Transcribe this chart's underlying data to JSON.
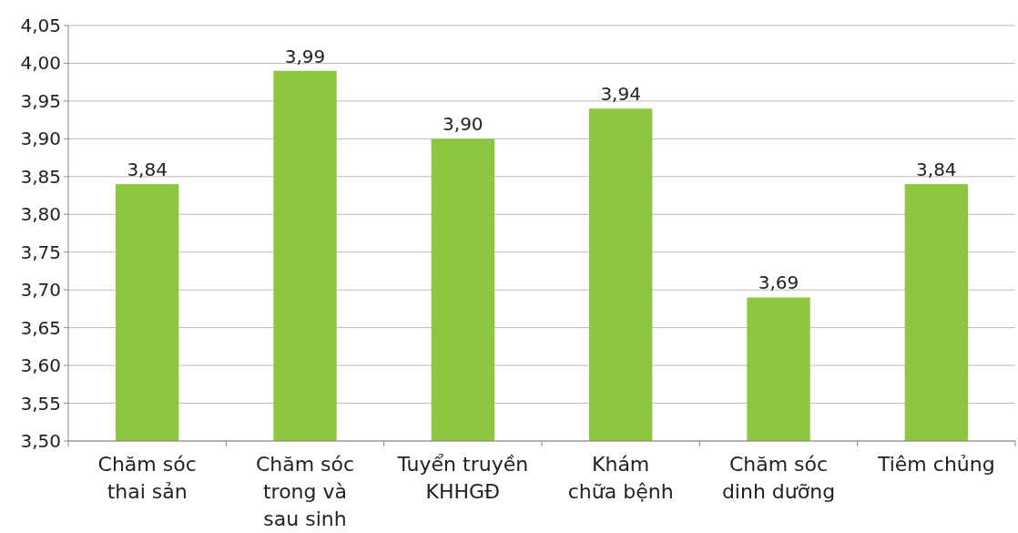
{
  "chart_data": {
    "type": "bar",
    "categories": [
      "Chăm sóc\nthai sản",
      "Chăm sóc\ntrong và\nsau sinh",
      "Tuyển truyền\nKHHGĐ",
      "Khám\nchữa bệnh",
      "Chăm sóc\ndinh dưỡng",
      "Tiêm chủng"
    ],
    "values": [
      3.84,
      3.99,
      3.9,
      3.94,
      3.69,
      3.84
    ],
    "color": "#8dc63f",
    "ylim": [
      3.5,
      4.05
    ],
    "yticks": [
      {
        "value": 3.5,
        "label": "3,50"
      },
      {
        "value": 3.55,
        "label": "3,55"
      },
      {
        "value": 3.6,
        "label": "3,60"
      },
      {
        "value": 3.65,
        "label": "3,65"
      },
      {
        "value": 3.7,
        "label": "3,70"
      },
      {
        "value": 3.75,
        "label": "3,75"
      },
      {
        "value": 3.8,
        "label": "3,80"
      },
      {
        "value": 3.85,
        "label": "3,85"
      },
      {
        "value": 3.9,
        "label": "3,90"
      },
      {
        "value": 3.95,
        "label": "3,95"
      },
      {
        "value": 4.0,
        "label": "4,00"
      },
      {
        "value": 4.05,
        "label": "4,05"
      }
    ],
    "grid": "y",
    "value_labels": [
      "3,84",
      "3,99",
      "3,90",
      "3,94",
      "3,69",
      "3,84"
    ]
  }
}
